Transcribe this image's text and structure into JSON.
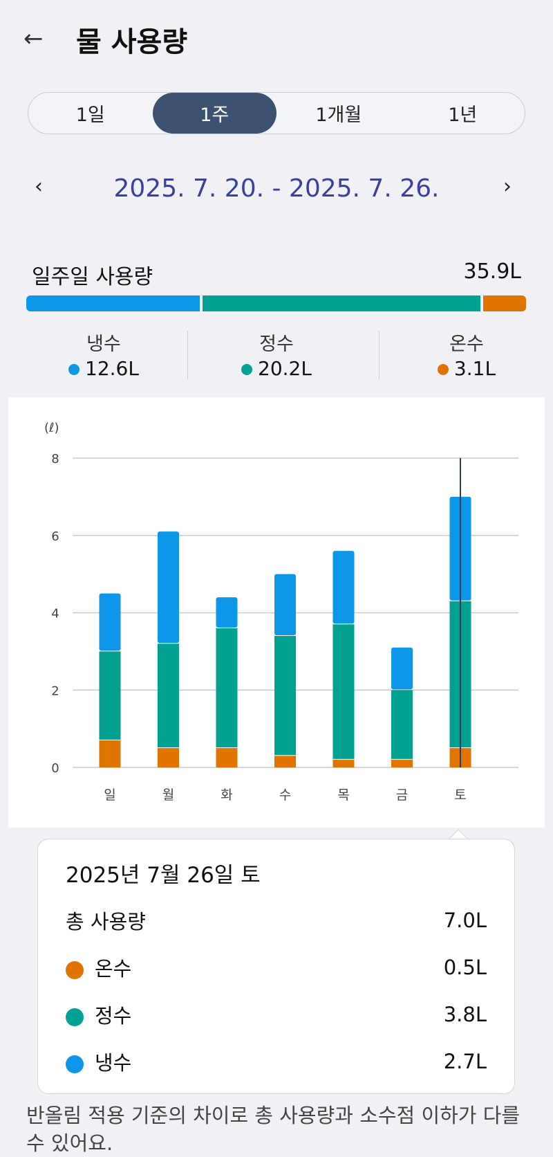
{
  "header": {
    "back_icon": "arrow-left",
    "title": "물 사용량"
  },
  "periods": [
    {
      "label": "1일"
    },
    {
      "label": "1주",
      "active": true
    },
    {
      "label": "1개월"
    },
    {
      "label": "1년"
    }
  ],
  "date_range": "2025. 7. 20. - 2025. 7. 26.",
  "weekly": {
    "label": "일주일 사용량",
    "total": "35.9L"
  },
  "colors": {
    "cold": "#0e96e8",
    "purified": "#02a192",
    "hot": "#e07400"
  },
  "legend": [
    {
      "name": "냉수",
      "value": "12.6L",
      "color": "#0e96e8",
      "share": 12.6
    },
    {
      "name": "정수",
      "value": "20.2L",
      "color": "#02a192",
      "share": 20.2
    },
    {
      "name": "온수",
      "value": "3.1L",
      "color": "#e07400",
      "share": 3.1
    }
  ],
  "chart_data": {
    "type": "bar",
    "stacked": true,
    "ylabel": "(ℓ)",
    "ylim": [
      0,
      8
    ],
    "yticks": [
      0,
      2,
      4,
      6,
      8
    ],
    "categories": [
      "일",
      "월",
      "화",
      "수",
      "목",
      "금",
      "토"
    ],
    "series": [
      {
        "name": "온수",
        "color": "#e07400",
        "values": [
          0.7,
          0.5,
          0.5,
          0.3,
          0.2,
          0.2,
          0.5
        ]
      },
      {
        "name": "정수",
        "color": "#02a192",
        "values": [
          2.3,
          2.7,
          3.1,
          3.1,
          3.5,
          1.8,
          3.8
        ]
      },
      {
        "name": "냉수",
        "color": "#0e96e8",
        "values": [
          1.5,
          2.9,
          0.8,
          1.6,
          1.9,
          1.1,
          2.7
        ]
      }
    ],
    "selected_index": 6
  },
  "tooltip": {
    "date": "2025년 7월 26일 토",
    "total_label": "총 사용량",
    "total": "7.0L",
    "rows": [
      {
        "name": "온수",
        "value": "0.5L",
        "color": "#e07400"
      },
      {
        "name": "정수",
        "value": "3.8L",
        "color": "#02a192"
      },
      {
        "name": "냉수",
        "value": "2.7L",
        "color": "#0e96e8"
      }
    ]
  },
  "note": "반올림 적용 기준의 차이로 총 사용량과 소수점 이하가 다를 수 있어요."
}
